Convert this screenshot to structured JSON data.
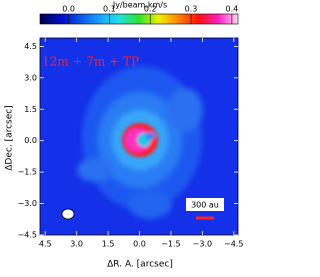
{
  "chart_data": {
    "type": "image",
    "colorbar_label": "Jy/beam.km/s",
    "annotation": "12m + 7m + TP",
    "scalebar_label": "300 au",
    "xlabel": "ΔR. A. [arcsec]",
    "ylabel": "ΔDec. [arcsec]",
    "xlim": [
      4.75,
      -4.7
    ],
    "xticks": [
      {
        "value": 4.5,
        "label": "4.5"
      },
      {
        "value": 3,
        "label": "3.0"
      },
      {
        "value": 1.5,
        "label": "1.5"
      },
      {
        "value": 0,
        "label": "0.0"
      },
      {
        "value": -1.5,
        "label": "−1.5"
      },
      {
        "value": -3,
        "label": "−3.0"
      },
      {
        "value": -4.5,
        "label": "−4.5"
      }
    ],
    "ylim": [
      -4.5,
      4.9
    ],
    "yticks": [
      {
        "value": 4.5,
        "label": "4.5"
      },
      {
        "value": 3,
        "label": "3.0"
      },
      {
        "value": 1.5,
        "label": "1.5"
      },
      {
        "value": 0,
        "label": "0.0"
      },
      {
        "value": -1.5,
        "label": "−1.5"
      },
      {
        "value": -3,
        "label": "−3.0"
      },
      {
        "value": -4.5,
        "label": "−4.5"
      }
    ],
    "clim": [
      -0.07,
      0.415
    ],
    "cticks": [
      {
        "value": 0,
        "label": "0.0"
      },
      0.1,
      0.2,
      0.3,
      0.4
    ]
  }
}
